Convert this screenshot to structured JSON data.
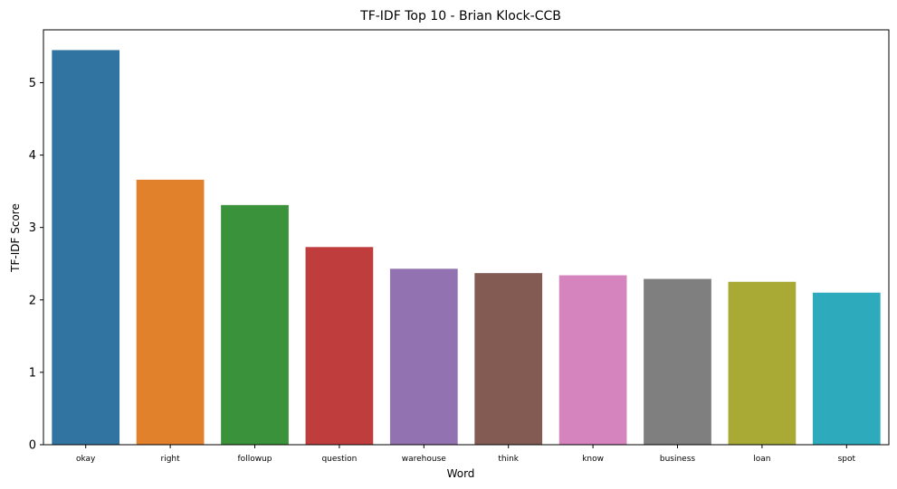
{
  "chart_data": {
    "type": "bar",
    "title": "TF-IDF Top 10 - Brian Klock-CCB",
    "xlabel": "Word",
    "ylabel": "TF-IDF Score",
    "categories": [
      "okay",
      "right",
      "followup",
      "question",
      "warehouse",
      "think",
      "know",
      "business",
      "loan",
      "spot"
    ],
    "values": [
      5.45,
      3.66,
      3.31,
      2.73,
      2.43,
      2.37,
      2.34,
      2.29,
      2.25,
      2.1
    ],
    "colors": [
      "#3274a1",
      "#e1812c",
      "#3a923a",
      "#c03d3e",
      "#9372b2",
      "#845b53",
      "#d684bd",
      "#7f7f7f",
      "#a9aa35",
      "#2eaabd"
    ],
    "yticks": [
      0,
      1,
      2,
      3,
      4,
      5
    ],
    "ylim": [
      0,
      5.73
    ],
    "grid": false
  }
}
